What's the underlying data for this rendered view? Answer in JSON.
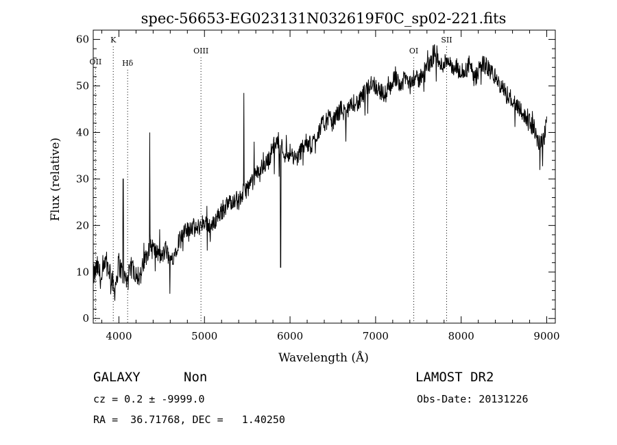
{
  "chart_data": {
    "type": "line",
    "title": "spec-56653-EG023131N032619F0C_sp02-221.fits",
    "xlabel": "Wavelength (Å)",
    "ylabel": "Flux (relative)",
    "xlim": [
      3700,
      9100
    ],
    "ylim": [
      -1,
      62
    ],
    "xticks": [
      4000,
      5000,
      6000,
      7000,
      8000,
      9000
    ],
    "yticks": [
      0,
      10,
      20,
      30,
      40,
      50,
      60
    ],
    "grid": false,
    "series": [
      {
        "x": [
          3700,
          3750,
          3800,
          3850,
          3900,
          3950,
          4000,
          4050,
          4100,
          4150,
          4200,
          4250,
          4300,
          4350,
          4400,
          4450,
          4500,
          4550,
          4600,
          4650,
          4700,
          4750,
          4800,
          4850,
          4900,
          4950,
          5000,
          5050,
          5100,
          5150,
          5200,
          5250,
          5300,
          5350,
          5400,
          5450,
          5500,
          5550,
          5600,
          5650,
          5700,
          5750,
          5800,
          5850,
          5900,
          5950,
          6000,
          6050,
          6100,
          6150,
          6200,
          6250,
          6300,
          6350,
          6400,
          6450,
          6500,
          6550,
          6600,
          6650,
          6700,
          6750,
          6800,
          6850,
          6900,
          6950,
          7000,
          7050,
          7100,
          7150,
          7200,
          7250,
          7300,
          7350,
          7400,
          7450,
          7500,
          7550,
          7600,
          7650,
          7700,
          7750,
          7800,
          7850,
          7900,
          7950,
          8000,
          8050,
          8100,
          8150,
          8200,
          8250,
          8300,
          8350,
          8400,
          8450,
          8500,
          8550,
          8600,
          8650,
          8700,
          8750,
          8800,
          8850,
          8900,
          8950,
          9000
        ],
        "y": [
          9,
          11,
          8,
          12,
          10,
          6,
          12,
          9,
          8,
          11,
          10,
          9,
          12,
          16,
          15,
          14,
          13,
          15,
          12,
          14,
          17,
          18,
          19,
          20,
          19,
          20,
          21,
          20,
          20,
          22,
          23,
          24,
          25,
          26,
          25,
          27,
          28,
          29,
          31,
          32,
          33,
          34,
          37,
          38,
          37,
          35,
          36,
          34,
          35,
          37,
          38,
          37,
          39,
          41,
          42,
          43,
          42,
          44,
          45,
          44,
          45,
          47,
          46,
          48,
          49,
          51,
          50,
          49,
          48,
          49,
          51,
          52,
          50,
          52,
          50,
          52,
          51,
          53,
          54,
          55,
          58,
          54,
          55,
          56,
          53,
          54,
          52,
          53,
          55,
          51,
          53,
          55,
          54,
          53,
          52,
          50,
          49,
          48,
          47,
          46,
          45,
          43,
          42,
          41,
          38,
          37,
          42
        ]
      }
    ],
    "sharp_features": [
      {
        "x": 4050,
        "y": 30
      },
      {
        "x": 4360,
        "y": 40
      },
      {
        "x": 5460,
        "y": 48.5
      },
      {
        "x": 5580,
        "y": 38
      },
      {
        "x": 5890,
        "y": 11
      }
    ],
    "lines": [
      {
        "label": "OII",
        "x": 3727
      },
      {
        "label": "K",
        "x": 3934
      },
      {
        "label": "Hδ",
        "x": 4102
      },
      {
        "label": "OIII",
        "x": 4959
      },
      {
        "label": "OI",
        "x": 7446
      },
      {
        "label": "SII",
        "x": 7830
      }
    ]
  },
  "info": {
    "class": "GALAXY",
    "subclass": "Non",
    "survey": "LAMOST DR2",
    "cz": "cz = 0.2 ± -9999.0",
    "obsdate": "Obs-Date: 20131226",
    "radec": "RA =  36.71768, DEC =   1.40250"
  }
}
